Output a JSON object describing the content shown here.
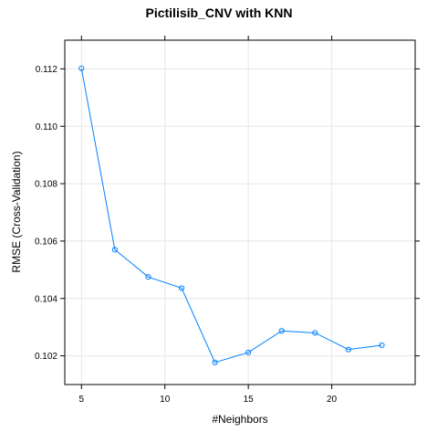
{
  "chart_data": {
    "type": "line",
    "title": "Pictilisib_CNV with KNN",
    "xlabel": "#Neighbors",
    "ylabel": "RMSE (Cross-Validation)",
    "x": [
      5,
      7,
      9,
      11,
      13,
      15,
      17,
      19,
      21,
      23
    ],
    "series": [
      {
        "values": [
          0.11202,
          0.1057,
          0.10475,
          0.10436,
          0.10177,
          0.10212,
          0.10287,
          0.1028,
          0.10222,
          0.10237
        ]
      }
    ],
    "xlim": [
      4,
      25
    ],
    "ylim": [
      0.101,
      0.113
    ],
    "xticks": [
      5,
      10,
      15,
      20
    ],
    "yticks": [
      0.102,
      0.104,
      0.106,
      0.108,
      0.11,
      0.112
    ],
    "ytick_labels": [
      "0.102",
      "0.104",
      "0.106",
      "0.108",
      "0.110",
      "0.112"
    ],
    "grid": true,
    "colors": {
      "line": "#0080ff",
      "grid": "#e6e6e6",
      "frame": "#000000"
    }
  }
}
